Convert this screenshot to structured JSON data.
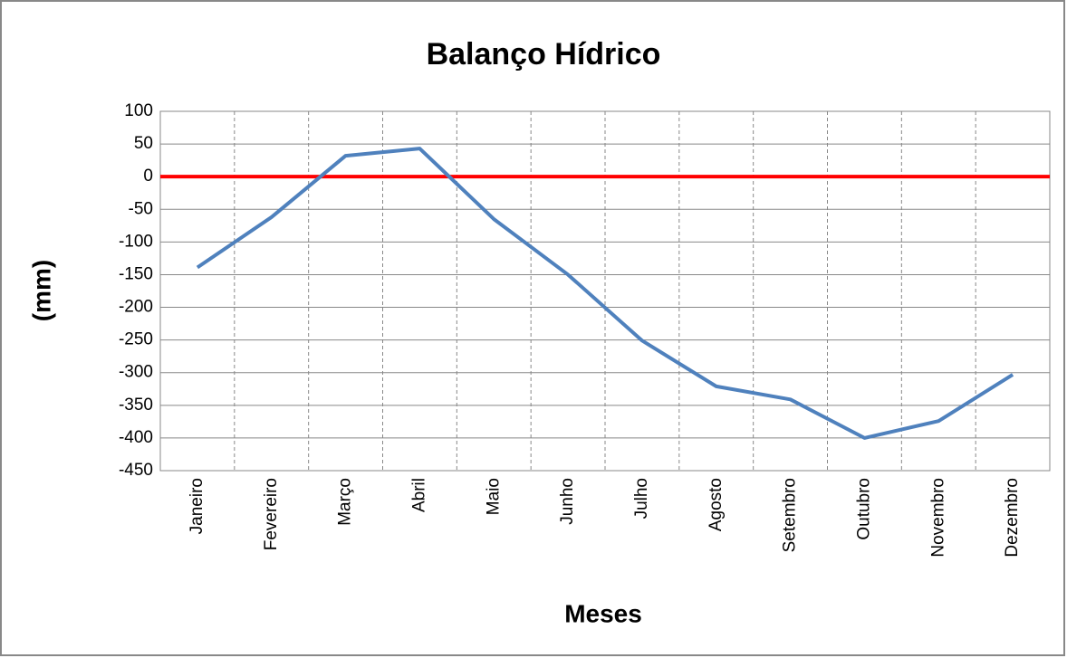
{
  "chart_data": {
    "type": "line",
    "title": "Balanço Hídrico",
    "x_label": "Meses",
    "y_label": "(mm)",
    "categories": [
      "Janeiro",
      "Fevereiro",
      "Março",
      "Abril",
      "Maio",
      "Junho",
      "Julho",
      "Agosto",
      "Setembro",
      "Outubro",
      "Novembro",
      "Dezembro"
    ],
    "series": [
      {
        "name": "Balanço",
        "color": "#4f81bd",
        "values": [
          -139,
          -62,
          32,
          43,
          -65,
          -150,
          -251,
          -321,
          -341,
          -400,
          -374,
          -303
        ]
      }
    ],
    "reference_line": {
      "value": 0,
      "color": "#ff0000"
    },
    "ylim": [
      -450,
      100
    ],
    "yticks": [
      100,
      50,
      0,
      -50,
      -100,
      -150,
      -200,
      -250,
      -300,
      -350,
      -400,
      -450
    ],
    "grid": true
  }
}
